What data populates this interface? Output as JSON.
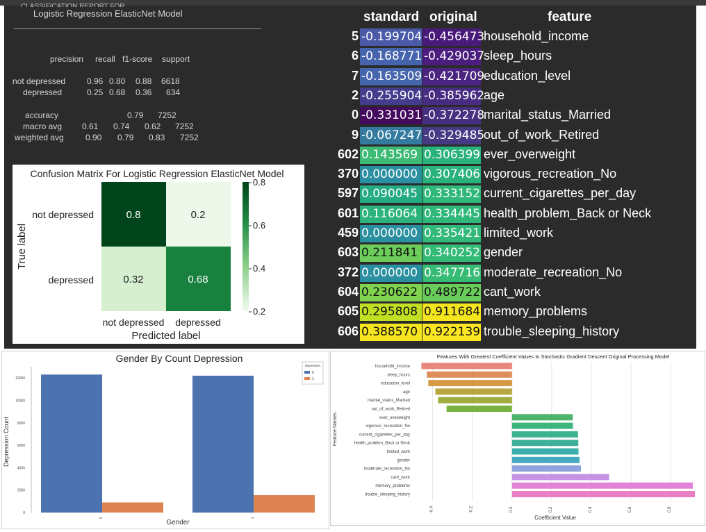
{
  "report": {
    "partial_top": "CLASSIFICATION REPORT FOR",
    "title": "Logistic Regression ElasticNet Model",
    "headers": [
      "precision",
      "recall",
      "f1-score",
      "support"
    ],
    "rows": [
      {
        "label": "not depressed",
        "precision": "0.96",
        "recall": "0.80",
        "f1": "0.88",
        "support": "6618"
      },
      {
        "label": "depressed",
        "precision": "0.25",
        "recall": "0.68",
        "f1": "0.36",
        "support": "634"
      }
    ],
    "accuracy": {
      "label": "accuracy",
      "f1": "0.79",
      "support": "7252"
    },
    "macro": {
      "label": "macro avg",
      "precision": "0.61",
      "recall": "0.74",
      "f1": "0.62",
      "support": "7252"
    },
    "weighted": {
      "label": "weighted avg",
      "precision": "0.90",
      "recall": "0.79",
      "f1": "0.83",
      "support": "7252"
    }
  },
  "coef_table": {
    "headers": {
      "standard": "standard",
      "original": "original",
      "feature": "feature"
    },
    "rows": [
      {
        "idx": "5",
        "standard": "-0.199704",
        "original": "-0.456473",
        "feature": "household_income",
        "std_color": "#4a5aa8",
        "orig_color": "#4a1a7a"
      },
      {
        "idx": "6",
        "standard": "-0.168771",
        "original": "-0.429037",
        "feature": "sleep_hours",
        "std_color": "#4664ae",
        "orig_color": "#4b1e7e"
      },
      {
        "idx": "7",
        "standard": "-0.163509",
        "original": "-0.421709",
        "feature": "education_level",
        "std_color": "#4566ad",
        "orig_color": "#4a2480"
      },
      {
        "idx": "2",
        "standard": "-0.255904",
        "original": "-0.385962",
        "feature": "age",
        "std_color": "#443d8e",
        "orig_color": "#472c82"
      },
      {
        "idx": "0",
        "standard": "-0.331031",
        "original": "-0.372278",
        "feature": "marital_status_Married",
        "std_color": "#440a5e",
        "orig_color": "#46307f"
      },
      {
        "idx": "9",
        "standard": "-0.067247",
        "original": "-0.329485",
        "feature": "out_of_work_Retired",
        "std_color": "#357ba0",
        "orig_color": "#443b84"
      },
      {
        "idx": "602",
        "standard": "0.143569",
        "original": "0.306399",
        "feature": "ever_overweight",
        "std_color": "#3dbb74",
        "orig_color": "#2ab27c"
      },
      {
        "idx": "370",
        "standard": "0.000000",
        "original": "0.307406",
        "feature": "vigorous_recreation_No",
        "std_color": "#2a8fa0",
        "orig_color": "#2ab27c"
      },
      {
        "idx": "597",
        "standard": "0.090045",
        "original": "0.333152",
        "feature": "current_cigarettes_per_day",
        "std_color": "#25ab82",
        "orig_color": "#2fb87a"
      },
      {
        "idx": "601",
        "standard": "0.116064",
        "original": "0.334445",
        "feature": "health_problem_Back or Neck",
        "std_color": "#2cb37b",
        "orig_color": "#2fb87a"
      },
      {
        "idx": "459",
        "standard": "0.000000",
        "original": "0.335421",
        "feature": "limited_work",
        "std_color": "#2a8fa0",
        "orig_color": "#31b979"
      },
      {
        "idx": "603",
        "standard": "0.211841",
        "original": "0.340252",
        "feature": "gender",
        "std_color": "#6ccd5a",
        "orig_color": "#34ba77"
      },
      {
        "idx": "372",
        "standard": "0.000000",
        "original": "0.347716",
        "feature": "moderate_recreation_No",
        "std_color": "#2a8fa0",
        "orig_color": "#38bb75"
      },
      {
        "idx": "604",
        "standard": "0.230622",
        "original": "0.489722",
        "feature": "cant_work",
        "std_color": "#7fd34e",
        "orig_color": "#6acd5b"
      },
      {
        "idx": "605",
        "standard": "0.295808",
        "original": "0.911684",
        "feature": "memory_problems",
        "std_color": "#c2df23",
        "orig_color": "#f4e51e"
      },
      {
        "idx": "606",
        "standard": "0.388570",
        "original": "0.922139",
        "feature": "trouble_sleeping_history",
        "std_color": "#f4e51e",
        "orig_color": "#fde725"
      }
    ]
  },
  "chart_data": [
    {
      "type": "heatmap",
      "title": "Confusion Matrix For Logistic Regression ElasticNet Model",
      "xlabel": "Predicted label",
      "ylabel": "True label",
      "x_categories": [
        "not depressed",
        "depressed"
      ],
      "y_categories": [
        "not depressed",
        "depressed"
      ],
      "values": [
        [
          0.8,
          0.2
        ],
        [
          0.32,
          0.68
        ]
      ],
      "value_labels": [
        [
          "0.8",
          "0.2"
        ],
        [
          "0.32",
          "0.68"
        ]
      ],
      "colorscale": "Greens",
      "colorbar_range": [
        0.2,
        0.8
      ],
      "colorbar_ticks": [
        "0.8",
        "0.6",
        "0.4",
        "0.2"
      ]
    },
    {
      "type": "bar",
      "title": "Gender By Count Depression",
      "xlabel": "Gender",
      "ylabel": "Depression Count",
      "categories": [
        "0",
        "1"
      ],
      "legend_title": "depression",
      "legend_position": "top-right",
      "series": [
        {
          "name": "0",
          "values": [
            12300,
            12200
          ],
          "color": "#4c72b0"
        },
        {
          "name": "1",
          "values": [
            900,
            1550
          ],
          "color": "#dd8452"
        }
      ],
      "ylim": [
        0,
        13000
      ],
      "yticks": [
        "0",
        "2000",
        "4000",
        "6000",
        "8000",
        "10000",
        "12000"
      ]
    },
    {
      "type": "bar",
      "orientation": "horizontal",
      "title": "Features With Greatest Coefficient Values In Stochastic Gradient Descent Original Processing Model",
      "xlabel": "Coefficient Value",
      "ylabel": "Feature Names",
      "categories": [
        "household_income",
        "sleep_hours",
        "education_level",
        "age",
        "marital_status_Married",
        "out_of_work_Retired",
        "ever_overweight",
        "vigorous_recreation_No",
        "current_cigarettes_per_day",
        "health_problem_Back or Neck",
        "limited_work",
        "gender",
        "moderate_recreation_No",
        "cant_work",
        "memory_problems",
        "trouble_sleeping_history"
      ],
      "values": [
        -0.456473,
        -0.429037,
        -0.421709,
        -0.385962,
        -0.372278,
        -0.329485,
        0.306399,
        0.307406,
        0.333152,
        0.334445,
        0.335421,
        0.340252,
        0.347716,
        0.489722,
        0.911684,
        0.922139
      ],
      "colors": [
        "#e8877a",
        "#e08d5c",
        "#d49a45",
        "#b8a640",
        "#a0ac3e",
        "#7bb23f",
        "#4cb36a",
        "#3fb57e",
        "#3db28e",
        "#3cb09b",
        "#3eaeac",
        "#46a9c0",
        "#8fa4dc",
        "#c793e6",
        "#e283d8",
        "#ea7fc4"
      ],
      "xlim": [
        -0.5,
        0.95
      ],
      "xticks": [
        "-0.4",
        "-0.2",
        "0.0",
        "0.2",
        "0.4",
        "0.6",
        "0.8"
      ],
      "grid": true
    }
  ]
}
